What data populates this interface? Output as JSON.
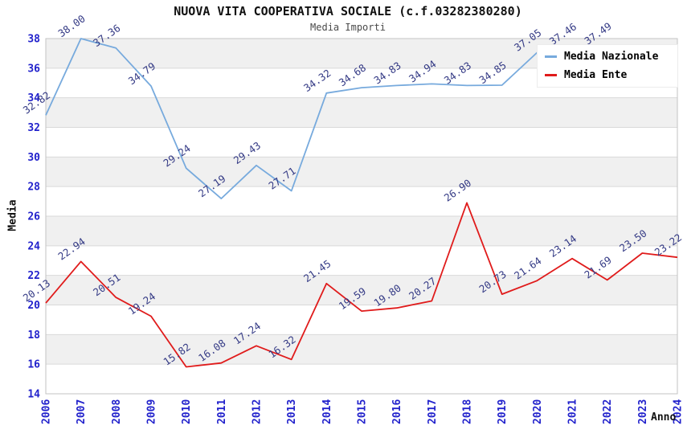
{
  "title": "NUOVA VITA COOPERATIVA SOCIALE (c.f.03282380280)",
  "subtitle": "Media Importi",
  "chart_data": {
    "type": "line",
    "x": [
      "2006",
      "2007",
      "2008",
      "2009",
      "2010",
      "2011",
      "2012",
      "2013",
      "2014",
      "2015",
      "2016",
      "2017",
      "2018",
      "2019",
      "2020",
      "2021",
      "2022",
      "2023",
      "2024"
    ],
    "xlabel": "Anno",
    "ylabel": "Media",
    "ylim": [
      14,
      38
    ],
    "ytick_step": 2,
    "grid": true,
    "band_rows": true,
    "legend_position": "top-right",
    "series": [
      {
        "name": "Media Nazionale",
        "color": "#77aadd",
        "values": [
          32.82,
          38.0,
          37.36,
          34.79,
          29.24,
          27.19,
          29.43,
          27.71,
          34.32,
          34.68,
          34.83,
          34.94,
          34.83,
          34.85,
          37.05,
          37.46,
          37.49,
          null,
          null
        ]
      },
      {
        "name": "Media Ente",
        "color": "#e01b1b",
        "values": [
          20.13,
          22.94,
          20.51,
          19.24,
          15.82,
          16.08,
          17.24,
          16.32,
          21.45,
          19.59,
          19.8,
          20.27,
          26.9,
          20.73,
          21.64,
          23.14,
          21.69,
          23.5,
          23.22
        ]
      }
    ]
  },
  "colors": {
    "band": "#f0f0f0",
    "grid": "#d9d9d9",
    "plot_border": "#c3c3c3",
    "tick_label": "#2222cc",
    "data_label": "#343a85",
    "background": "#ffffff"
  }
}
